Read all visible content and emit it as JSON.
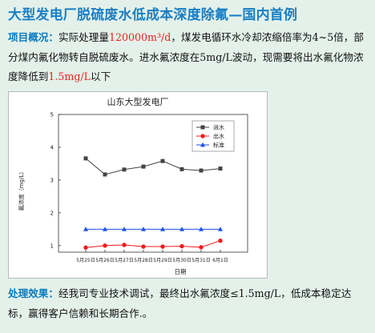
{
  "headline": "大型发电厂脱硫废水低成本深度除氟—国内首例",
  "overview": {
    "label": "项目概况：",
    "text1": "实际处理量",
    "highlight1": "120000m³/d",
    "text2": "，煤发电循环水冷却浓缩倍率为4~5倍，部分煤内氟化物转自脱硫废水。进水氟浓度在5mg/L波动，现需要将出水氟化物浓度降低到",
    "highlight2": "1.5mg/L",
    "text3": "以下"
  },
  "effect": {
    "label": "处理效果：",
    "text": "经我司专业技术调试，最终出水氟浓度≤1.5mg/L，低成本稳定达标，赢得客户信赖和长期合作.。"
  },
  "colors": {
    "inflow": "#444444",
    "outflow": "#ee1c1c",
    "standard": "#1f52e6"
  },
  "chart_data": {
    "type": "line",
    "title": "山东大型发电厂",
    "xlabel": "日期",
    "ylabel": "氟浓度（mg/L）",
    "categories": [
      "5月25日",
      "5月26日",
      "5月27日",
      "5月28日",
      "5月29日",
      "5月30日",
      "5月31日",
      "6月1日"
    ],
    "ylim": [
      0.8,
      5
    ],
    "yticks": [
      1,
      2,
      3,
      4,
      5
    ],
    "grid": false,
    "legend": "top-right",
    "series": [
      {
        "name": "进水",
        "marker": "square",
        "values": [
          3.66,
          3.17,
          3.32,
          3.41,
          3.58,
          3.33,
          3.29,
          3.35
        ]
      },
      {
        "name": "出水",
        "marker": "circle",
        "values": [
          0.94,
          1.0,
          1.02,
          0.97,
          0.97,
          0.98,
          0.95,
          1.15
        ]
      },
      {
        "name": "标准",
        "marker": "triangle",
        "values": [
          1.5,
          1.5,
          1.5,
          1.5,
          1.5,
          1.5,
          1.5,
          1.5
        ]
      }
    ]
  }
}
